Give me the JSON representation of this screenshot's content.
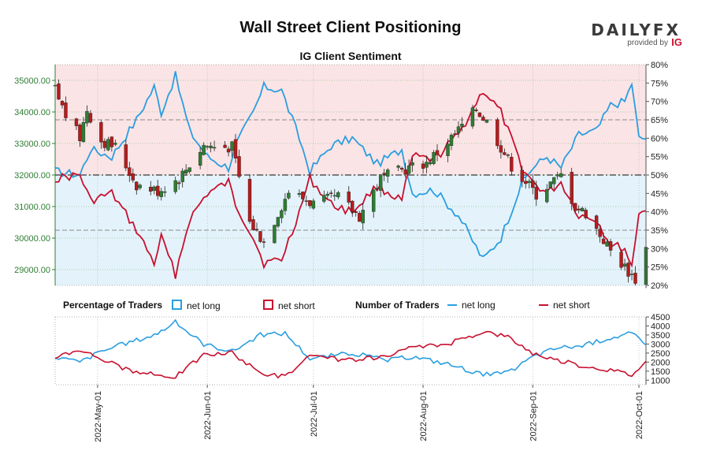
{
  "header": {
    "title": "Wall Street Client Positioning",
    "subtitle": "IG Client Sentiment"
  },
  "brand": {
    "wordmark": "DAILYFX",
    "provided_by": "provided by",
    "provider": "IG"
  },
  "legend": {
    "pct_header": "Percentage of Traders",
    "pct_long": "net long",
    "pct_short": "net short",
    "num_header": "Number of Traders",
    "num_long": "net long",
    "num_short": "net short"
  },
  "colors": {
    "long": "#2a9ee0",
    "short": "#c8102e",
    "candle_up": "#2e7d32",
    "candle_down": "#b71c1c",
    "long_zone": "#e4f3fb",
    "short_zone": "#fbe4e6",
    "price_axis": "#2e7d32"
  },
  "chart_data": [
    {
      "type": "candlestick",
      "price_axis": {
        "ticks": [
          "35000.00",
          "34000.00",
          "33000.00",
          "32000.00",
          "31000.00",
          "30000.00",
          "29000.00"
        ],
        "ylim": [
          28500,
          35500
        ]
      },
      "pct_axis": {
        "ticks": [
          "80%",
          "75%",
          "70%",
          "65%",
          "60%",
          "55%",
          "50%",
          "45%",
          "40%",
          "35%",
          "30%",
          "25%",
          "20%"
        ],
        "ylim": [
          20,
          80
        ]
      },
      "dates": [
        "2022-04-19",
        "2022-10-03"
      ],
      "x_ticks": [
        "2022-May-01",
        "2022-Jun-01",
        "2022-Jul-01",
        "2022-Aug-01",
        "2022-Sep-01",
        "2022-Oct-01"
      ],
      "close_anchors": [
        {
          "date": "2022-04-19",
          "value": 34700
        },
        {
          "date": "2022-04-22",
          "value": 33900
        },
        {
          "date": "2022-04-26",
          "value": 33200
        },
        {
          "date": "2022-04-28",
          "value": 34100
        },
        {
          "date": "2022-05-02",
          "value": 33100
        },
        {
          "date": "2022-05-06",
          "value": 32900
        },
        {
          "date": "2022-05-12",
          "value": 31700
        },
        {
          "date": "2022-05-18",
          "value": 31500
        },
        {
          "date": "2022-05-24",
          "value": 31900
        },
        {
          "date": "2022-05-31",
          "value": 32950
        },
        {
          "date": "2022-06-03",
          "value": 32900
        },
        {
          "date": "2022-06-08",
          "value": 32900
        },
        {
          "date": "2022-06-13",
          "value": 30500
        },
        {
          "date": "2022-06-17",
          "value": 29900
        },
        {
          "date": "2022-06-24",
          "value": 31500
        },
        {
          "date": "2022-07-01",
          "value": 31100
        },
        {
          "date": "2022-07-08",
          "value": 31300
        },
        {
          "date": "2022-07-14",
          "value": 30700
        },
        {
          "date": "2022-07-20",
          "value": 31900
        },
        {
          "date": "2022-07-27",
          "value": 32200
        },
        {
          "date": "2022-08-02",
          "value": 32400
        },
        {
          "date": "2022-08-10",
          "value": 33300
        },
        {
          "date": "2022-08-16",
          "value": 34100
        },
        {
          "date": "2022-08-19",
          "value": 33700
        },
        {
          "date": "2022-08-26",
          "value": 32300
        },
        {
          "date": "2022-08-30",
          "value": 31800
        },
        {
          "date": "2022-09-02",
          "value": 31400
        },
        {
          "date": "2022-09-09",
          "value": 32000
        },
        {
          "date": "2022-09-13",
          "value": 31000
        },
        {
          "date": "2022-09-16",
          "value": 30800
        },
        {
          "date": "2022-09-23",
          "value": 29600
        },
        {
          "date": "2022-09-30",
          "value": 28700
        },
        {
          "date": "2022-10-03",
          "value": 29700
        }
      ],
      "long_pct_anchors": [
        {
          "date": "2022-04-19",
          "value": 51
        },
        {
          "date": "2022-04-26",
          "value": 50
        },
        {
          "date": "2022-04-29",
          "value": 57
        },
        {
          "date": "2022-05-05",
          "value": 55
        },
        {
          "date": "2022-05-12",
          "value": 65
        },
        {
          "date": "2022-05-17",
          "value": 74
        },
        {
          "date": "2022-05-19",
          "value": 67
        },
        {
          "date": "2022-05-23",
          "value": 77
        },
        {
          "date": "2022-05-27",
          "value": 62
        },
        {
          "date": "2022-06-01",
          "value": 55
        },
        {
          "date": "2022-06-07",
          "value": 52
        },
        {
          "date": "2022-06-09",
          "value": 58
        },
        {
          "date": "2022-06-14",
          "value": 67
        },
        {
          "date": "2022-06-17",
          "value": 74
        },
        {
          "date": "2022-06-22",
          "value": 73
        },
        {
          "date": "2022-06-27",
          "value": 60
        },
        {
          "date": "2022-06-30",
          "value": 51
        },
        {
          "date": "2022-07-06",
          "value": 58
        },
        {
          "date": "2022-07-12",
          "value": 60
        },
        {
          "date": "2022-07-19",
          "value": 53
        },
        {
          "date": "2022-07-26",
          "value": 57
        },
        {
          "date": "2022-07-29",
          "value": 45
        },
        {
          "date": "2022-08-04",
          "value": 46
        },
        {
          "date": "2022-08-11",
          "value": 39
        },
        {
          "date": "2022-08-18",
          "value": 27
        },
        {
          "date": "2022-08-23",
          "value": 33
        },
        {
          "date": "2022-08-29",
          "value": 48
        },
        {
          "date": "2022-09-01",
          "value": 52
        },
        {
          "date": "2022-09-05",
          "value": 55
        },
        {
          "date": "2022-09-09",
          "value": 52
        },
        {
          "date": "2022-09-14",
          "value": 61
        },
        {
          "date": "2022-09-19",
          "value": 62
        },
        {
          "date": "2022-09-23",
          "value": 69
        },
        {
          "date": "2022-09-27",
          "value": 70
        },
        {
          "date": "2022-09-29",
          "value": 75
        },
        {
          "date": "2022-10-01",
          "value": 60
        },
        {
          "date": "2022-10-03",
          "value": 60
        }
      ],
      "series": [
        {
          "name": "net long"
        },
        {
          "name": "net short"
        }
      ]
    },
    {
      "type": "line",
      "count_axis": {
        "ticks": [
          "4500",
          "4000",
          "3500",
          "3000",
          "2500",
          "2000",
          "1500",
          "1000"
        ],
        "ylim": [
          750,
          4500
        ]
      },
      "long_count_anchors": [
        {
          "date": "2022-04-19",
          "value": 2300
        },
        {
          "date": "2022-04-26",
          "value": 2000
        },
        {
          "date": "2022-05-02",
          "value": 2600
        },
        {
          "date": "2022-05-10",
          "value": 3100
        },
        {
          "date": "2022-05-17",
          "value": 3500
        },
        {
          "date": "2022-05-23",
          "value": 4200
        },
        {
          "date": "2022-05-31",
          "value": 3000
        },
        {
          "date": "2022-06-08",
          "value": 2600
        },
        {
          "date": "2022-06-16",
          "value": 3500
        },
        {
          "date": "2022-06-23",
          "value": 3600
        },
        {
          "date": "2022-06-30",
          "value": 2200
        },
        {
          "date": "2022-07-12",
          "value": 2500
        },
        {
          "date": "2022-07-22",
          "value": 2100
        },
        {
          "date": "2022-07-29",
          "value": 2300
        },
        {
          "date": "2022-08-08",
          "value": 1900
        },
        {
          "date": "2022-08-18",
          "value": 1300
        },
        {
          "date": "2022-08-25",
          "value": 1400
        },
        {
          "date": "2022-09-01",
          "value": 2300
        },
        {
          "date": "2022-09-08",
          "value": 2800
        },
        {
          "date": "2022-09-15",
          "value": 2900
        },
        {
          "date": "2022-09-22",
          "value": 3300
        },
        {
          "date": "2022-09-29",
          "value": 3600
        },
        {
          "date": "2022-10-03",
          "value": 2900
        }
      ],
      "short_count_anchors": [
        {
          "date": "2022-04-19",
          "value": 2300
        },
        {
          "date": "2022-04-26",
          "value": 2700
        },
        {
          "date": "2022-05-02",
          "value": 2200
        },
        {
          "date": "2022-05-10",
          "value": 1500
        },
        {
          "date": "2022-05-17",
          "value": 1300
        },
        {
          "date": "2022-05-23",
          "value": 1200
        },
        {
          "date": "2022-05-31",
          "value": 2400
        },
        {
          "date": "2022-06-08",
          "value": 2500
        },
        {
          "date": "2022-06-16",
          "value": 1400
        },
        {
          "date": "2022-06-23",
          "value": 1200
        },
        {
          "date": "2022-06-30",
          "value": 2300
        },
        {
          "date": "2022-07-12",
          "value": 2100
        },
        {
          "date": "2022-07-22",
          "value": 2300
        },
        {
          "date": "2022-07-29",
          "value": 2800
        },
        {
          "date": "2022-08-08",
          "value": 3000
        },
        {
          "date": "2022-08-18",
          "value": 3700
        },
        {
          "date": "2022-08-25",
          "value": 3400
        },
        {
          "date": "2022-09-01",
          "value": 2500
        },
        {
          "date": "2022-09-08",
          "value": 2100
        },
        {
          "date": "2022-09-15",
          "value": 1800
        },
        {
          "date": "2022-09-22",
          "value": 1600
        },
        {
          "date": "2022-09-29",
          "value": 1300
        },
        {
          "date": "2022-10-03",
          "value": 2000
        }
      ],
      "series": [
        {
          "name": "net long"
        },
        {
          "name": "net short"
        }
      ]
    }
  ]
}
